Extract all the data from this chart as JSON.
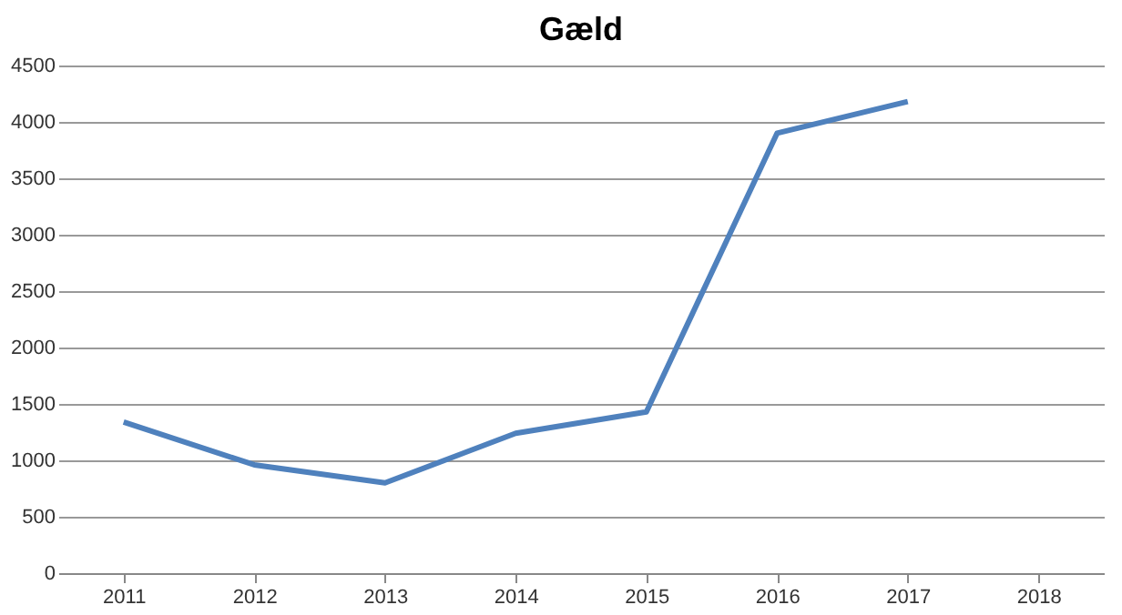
{
  "chart_data": {
    "type": "line",
    "title": "Gæld",
    "categories": [
      "2011",
      "2012",
      "2013",
      "2014",
      "2015",
      "2016",
      "2017",
      "2018"
    ],
    "series": [
      {
        "color": "#4f81bd",
        "values": [
          1340,
          960,
          800,
          1240,
          1430,
          3900,
          4180,
          null
        ]
      }
    ],
    "ylim": [
      0,
      4500
    ],
    "yticks": [
      0,
      500,
      1000,
      1500,
      2000,
      2500,
      3000,
      3500,
      4000,
      4500
    ],
    "grid": "y",
    "marker": "none",
    "line_style": "solid"
  }
}
